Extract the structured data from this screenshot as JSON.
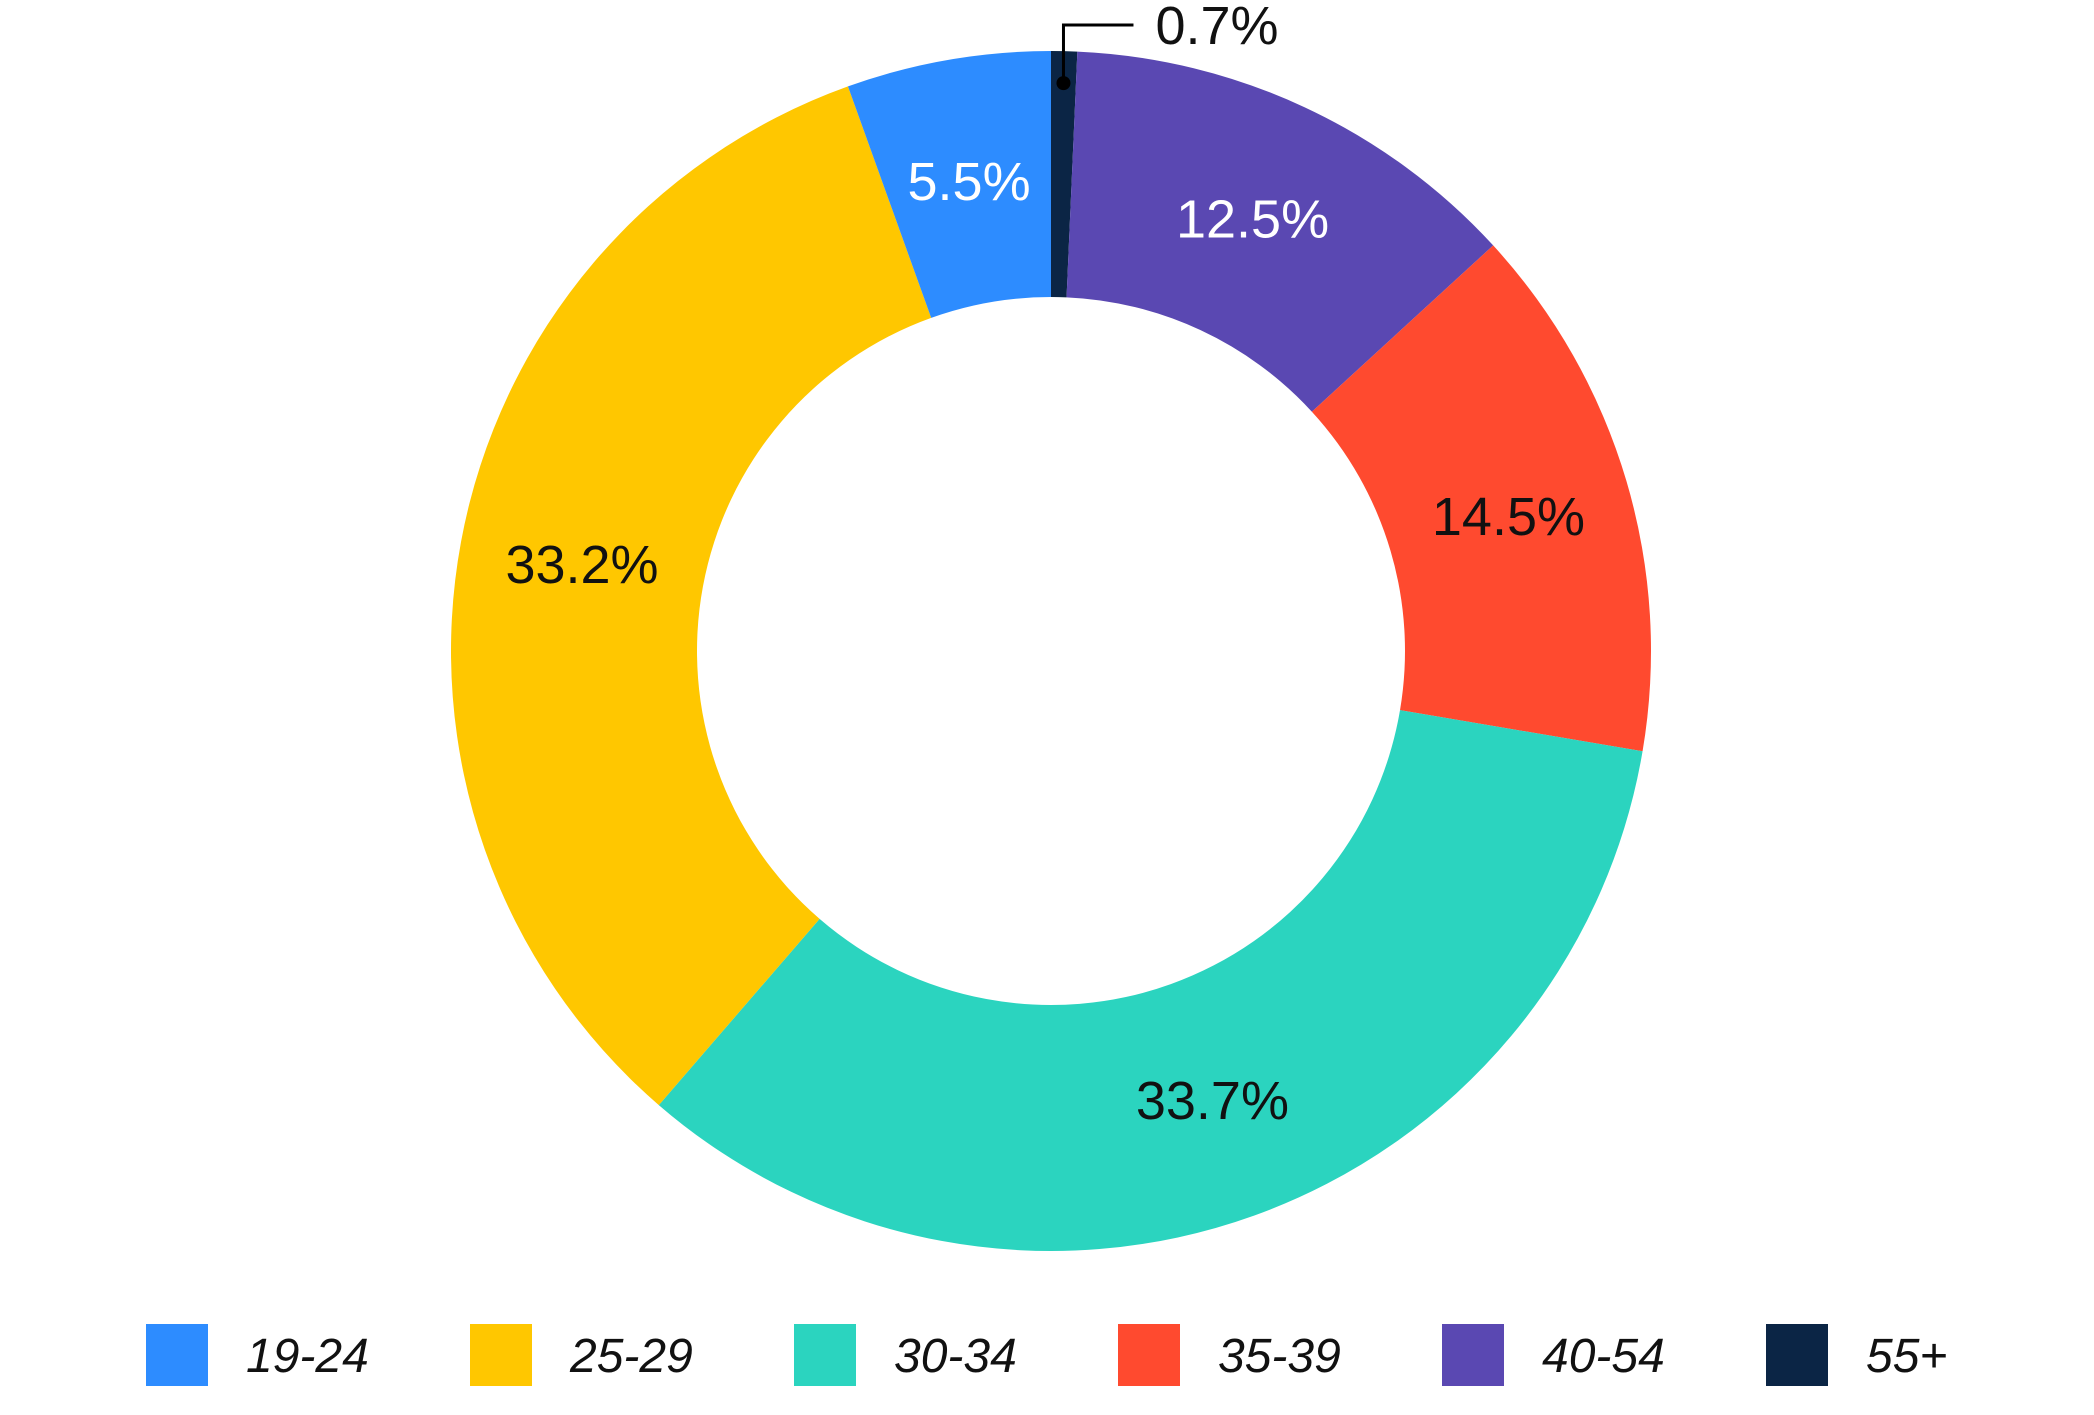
{
  "chart_data": {
    "type": "pie",
    "donut": true,
    "start": "top, clockwise",
    "slices": [
      {
        "label": "55+",
        "value": 0.7,
        "label_text": "0.7%",
        "color": "#0b2545",
        "label_color": "#111111",
        "callout": true
      },
      {
        "label": "40-54",
        "value": 12.5,
        "label_text": "12.5%",
        "color": "#5a48b2",
        "label_color": "#ffffff"
      },
      {
        "label": "35-39",
        "value": 14.5,
        "label_text": "14.5%",
        "color": "#ff4a2f",
        "label_color": "#111111"
      },
      {
        "label": "30-34",
        "value": 33.7,
        "label_text": "33.7%",
        "color": "#2bd4bf",
        "label_color": "#111111"
      },
      {
        "label": "25-29",
        "value": 33.2,
        "label_text": "33.2%",
        "color": "#ffc700",
        "label_color": "#111111"
      },
      {
        "label": "19-24",
        "value": 5.5,
        "label_text": "5.5%",
        "color": "#2d8cff",
        "label_color": "#ffffff"
      }
    ],
    "legend": {
      "position": "bottom",
      "items": [
        {
          "label": "19-24",
          "color": "#2d8cff"
        },
        {
          "label": "25-29",
          "color": "#ffc700"
        },
        {
          "label": "30-34",
          "color": "#2bd4bf"
        },
        {
          "label": "35-39",
          "color": "#ff4a2f"
        },
        {
          "label": "40-54",
          "color": "#5a48b2"
        },
        {
          "label": "55+",
          "color": "#0b2545"
        }
      ]
    }
  }
}
